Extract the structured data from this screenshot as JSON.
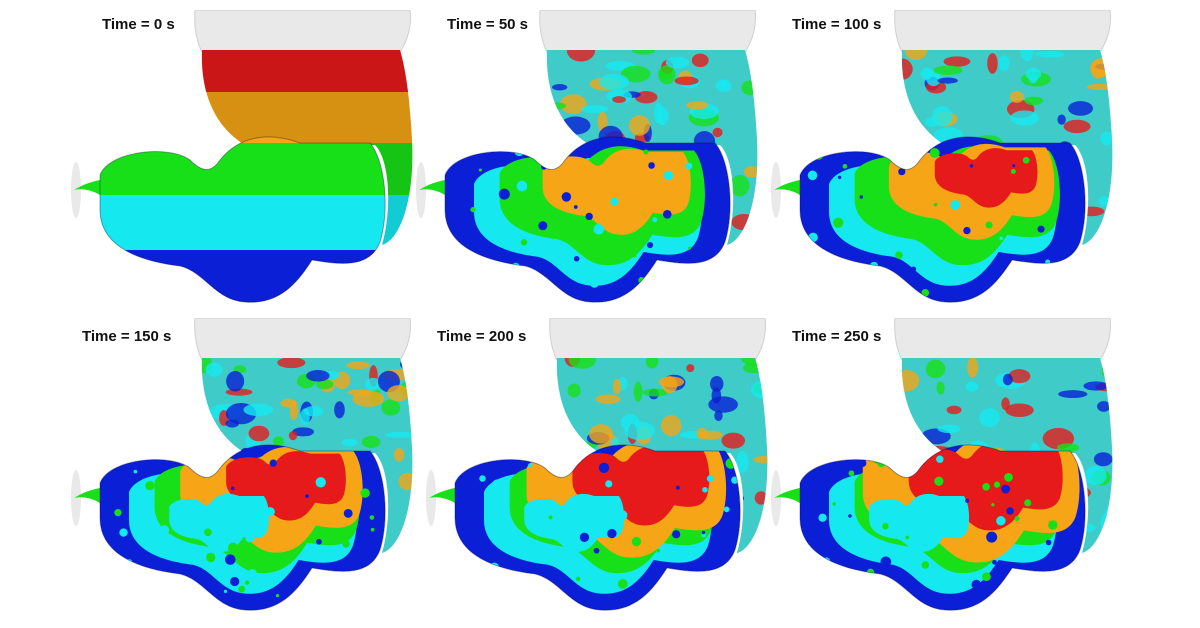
{
  "panels": [
    {
      "label": "Time = 0 s",
      "mode": "bands"
    },
    {
      "label": "Time = 50 s",
      "mode": "mixed",
      "level": 1
    },
    {
      "label": "Time = 100 s",
      "mode": "mixed",
      "level": 2
    },
    {
      "label": "Time = 150 s",
      "mode": "mixed",
      "level": 3
    },
    {
      "label": "Time = 200 s",
      "mode": "mixed",
      "level": 4
    },
    {
      "label": "Time = 250 s",
      "mode": "mixed",
      "level": 5
    }
  ],
  "colormap": [
    "#0a1fd6",
    "#16e8f0",
    "#18e018",
    "#f5a515",
    "#e61a1a"
  ],
  "cap_color": "#e9e9e9"
}
